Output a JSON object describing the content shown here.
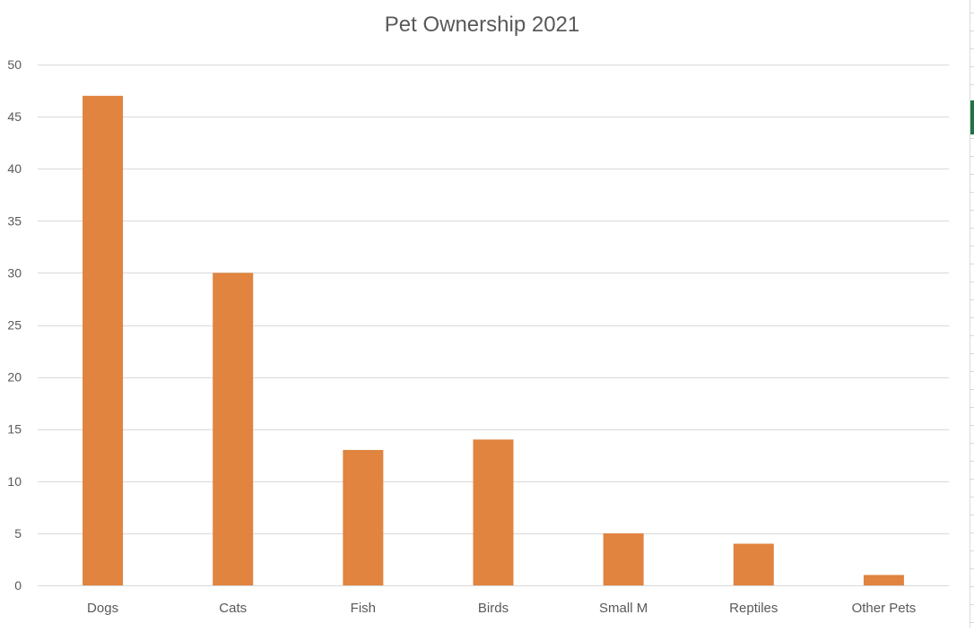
{
  "chart_data": {
    "type": "bar",
    "title": "Pet Ownership 2021",
    "categories": [
      "Dogs",
      "Cats",
      "Fish",
      "Birds",
      "Small M",
      "Reptiles",
      "Other Pets"
    ],
    "values": [
      47,
      30,
      13,
      14,
      5,
      4,
      1
    ],
    "ylim": [
      0,
      50
    ],
    "yticks": [
      0,
      5,
      10,
      15,
      20,
      25,
      30,
      35,
      40,
      45,
      50
    ],
    "xlabel": "",
    "ylabel": "",
    "grid": true,
    "legend": "none",
    "bar_color": "#E0843F"
  },
  "colors": {
    "gridline": "#D9D9D9",
    "axis_text": "#595959",
    "sheet_accent": "#217346"
  }
}
